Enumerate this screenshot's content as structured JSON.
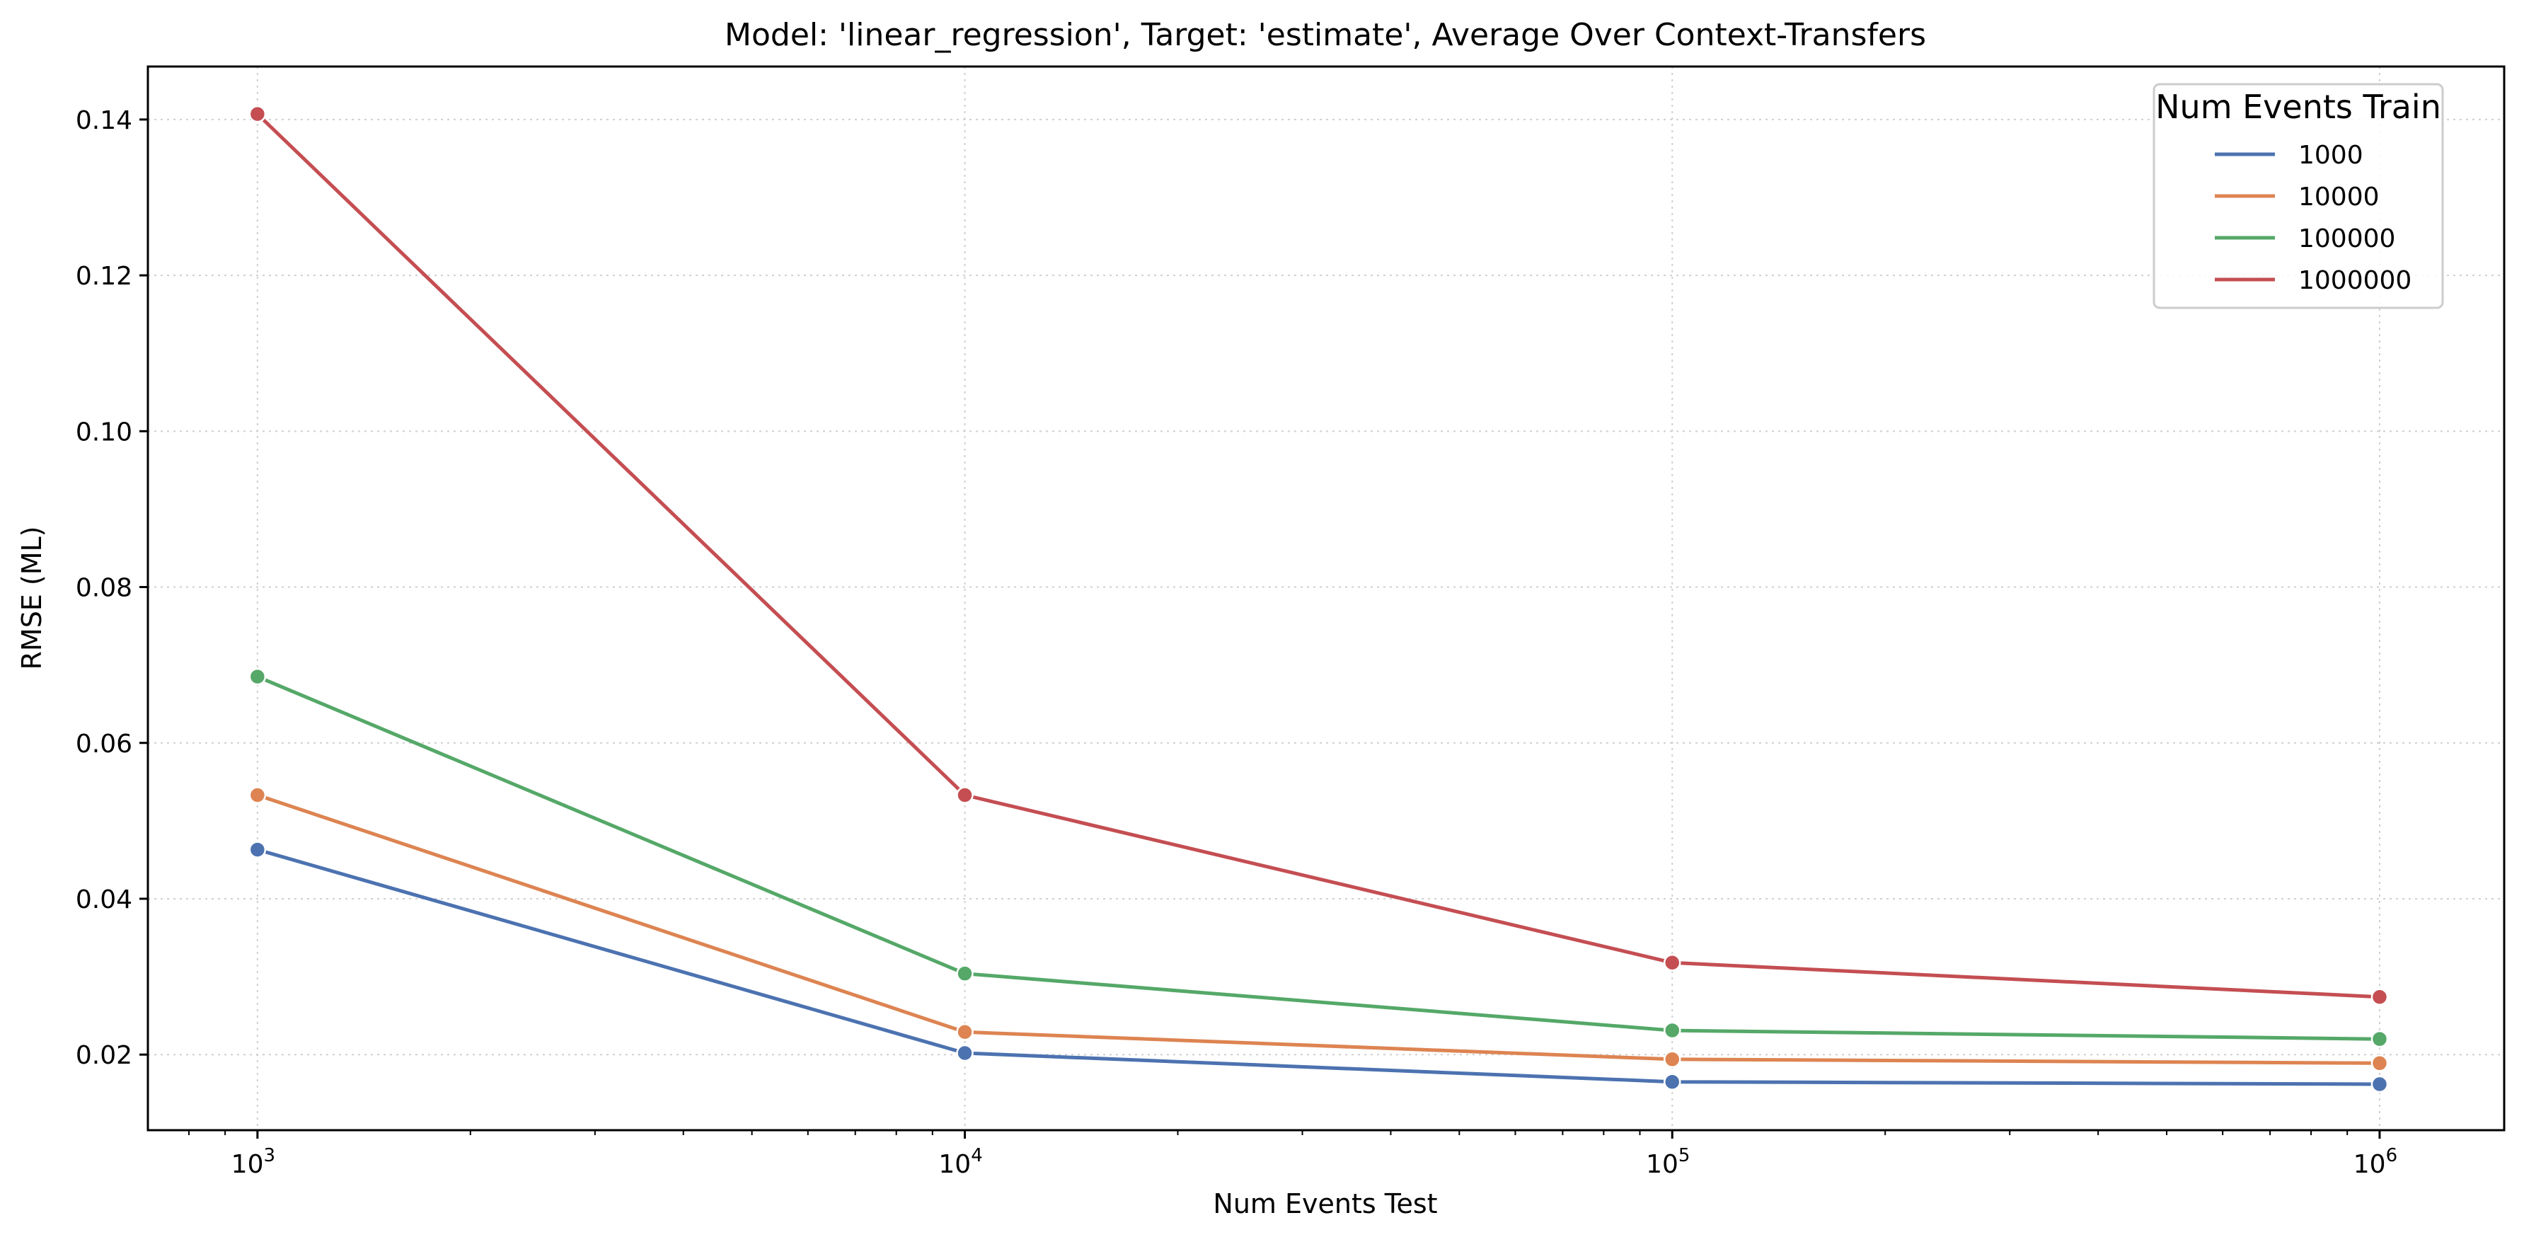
{
  "chart_data": {
    "type": "line",
    "title": "Model: 'linear_regression', Target: 'estimate', Average Over Context-Transfers",
    "xlabel": "Num Events Test",
    "ylabel": "RMSE (ML)",
    "xscale": "log",
    "x": [
      1000,
      10000,
      100000,
      1000000
    ],
    "xlim": [
      700,
      1500000
    ],
    "ylim": [
      0.0103,
      0.1468
    ],
    "x_tick_labels": [
      {
        "value": 1000,
        "base": "10",
        "exp": "3"
      },
      {
        "value": 10000,
        "base": "10",
        "exp": "4"
      },
      {
        "value": 100000,
        "base": "10",
        "exp": "5"
      },
      {
        "value": 1000000,
        "base": "10",
        "exp": "6"
      }
    ],
    "y_ticks": [
      0.02,
      0.04,
      0.06,
      0.08,
      0.1,
      0.12,
      0.14
    ],
    "y_tick_labels": [
      "0.02",
      "0.04",
      "0.06",
      "0.08",
      "0.10",
      "0.12",
      "0.14"
    ],
    "grid": true,
    "legend": {
      "title": "Num Events Train",
      "placement": "top-right"
    },
    "series": [
      {
        "name": "1000",
        "color": "#4c72b0",
        "values": [
          0.0463,
          0.0202,
          0.0165,
          0.0162
        ]
      },
      {
        "name": "10000",
        "color": "#dd8452",
        "values": [
          0.0533,
          0.0229,
          0.0194,
          0.0189
        ]
      },
      {
        "name": "100000",
        "color": "#55a868",
        "values": [
          0.0685,
          0.0304,
          0.0231,
          0.022
        ]
      },
      {
        "name": "1000000",
        "color": "#c44e52",
        "values": [
          0.1407,
          0.0533,
          0.0318,
          0.0274
        ]
      }
    ]
  }
}
